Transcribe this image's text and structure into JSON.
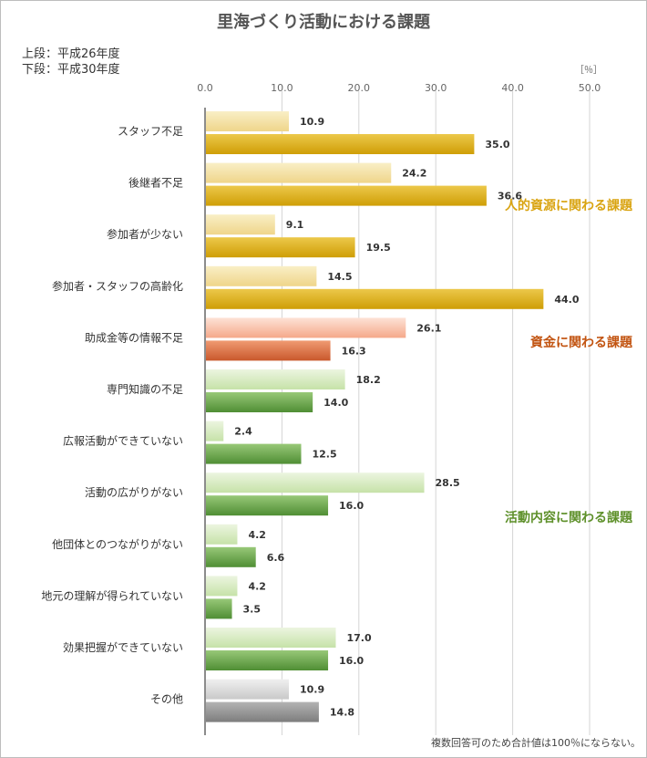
{
  "chart_data": {
    "type": "bar",
    "orientation": "horizontal",
    "title": "里海づくり活動における課題",
    "legend": {
      "upper_label": "上段：平成26年度",
      "lower_label": "下段：平成30年度"
    },
    "unit_label": "［％］",
    "xlim": [
      0,
      50
    ],
    "xticks": [
      0,
      10,
      20,
      30,
      40,
      50
    ],
    "xtick_labels": [
      "0.0",
      "10.0",
      "20.0",
      "30.0",
      "40.0",
      "50.0"
    ],
    "grid": true,
    "categories": [
      "スタッフ不足",
      "後継者不足",
      "参加者が少ない",
      "参加者・スタッフの高齢化",
      "助成金等の情報不足",
      "専門知識の不足",
      "広報活動ができていない",
      "活動の広がりがない",
      "他団体とのつながりがない",
      "地元の理解が得られていない",
      "効果把握ができていない",
      "その他"
    ],
    "series": [
      {
        "name": "平成26年度",
        "values": [
          10.9,
          24.2,
          9.1,
          14.5,
          26.1,
          18.2,
          2.4,
          28.5,
          4.2,
          4.2,
          17.0,
          10.9
        ],
        "labels": [
          "10.9",
          "24.2",
          "9.1",
          "14.5",
          "26.1",
          "18.2",
          "2.4",
          "28.5",
          "4.2",
          "4.2",
          "17.0",
          "10.9"
        ]
      },
      {
        "name": "平成30年度",
        "values": [
          35.0,
          36.6,
          19.5,
          44.0,
          16.3,
          14.0,
          12.5,
          16.0,
          6.6,
          3.5,
          16.0,
          14.8
        ],
        "labels": [
          "35.0",
          "36.6",
          "19.5",
          "44.0",
          "16.3",
          "14.0",
          "12.5",
          "16.0",
          "6.6",
          "3.5",
          "16.0",
          "14.8"
        ]
      }
    ],
    "groups": [
      {
        "label": "人的資源に関わる課題",
        "category_indices": [
          0,
          1,
          2,
          3
        ],
        "color": "#d9a412"
      },
      {
        "label": "資金に関わる課題",
        "category_indices": [
          4
        ],
        "color": "#c25411"
      },
      {
        "label": "活動内容に関わる課題",
        "category_indices": [
          5,
          6,
          7,
          8,
          9,
          10
        ],
        "color": "#5e902a"
      }
    ],
    "footnote": "複数回答可のため合計値は100％にならない。"
  },
  "palette": {
    "gold_light": [
      "#f9efc6",
      "#efd58a"
    ],
    "gold_dark": [
      "#ecc84a",
      "#cf9e06"
    ],
    "orange_light": [
      "#fde2d6",
      "#f5a88a"
    ],
    "orange_dark": [
      "#f09a72",
      "#c9582c"
    ],
    "green_light": [
      "#ecf5e0",
      "#c6e2a8"
    ],
    "green_dark": [
      "#98c878",
      "#4f8e34"
    ],
    "gray_light": [
      "#f0f0f0",
      "#c9c9c9"
    ],
    "gray_dark": [
      "#b3b3b3",
      "#7d7d7d"
    ],
    "text": "#333333",
    "title_text": "#555555",
    "tick_text": "#666666",
    "grid": "#d4d4d4",
    "axis": "#666666"
  }
}
